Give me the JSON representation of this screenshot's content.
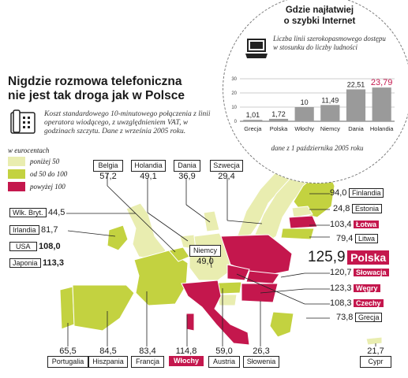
{
  "header": {
    "title_line1": "Nigdzie rozmowa telefoniczna",
    "title_line2": "nie jest tak droga jak w Polsce",
    "subtitle": "Koszt standardowego 10-minutowego połączenia z linii operatora wiodącego, z uwzględnieniem VAT, w godzinach szczytu. Dane z września 2005 roku."
  },
  "legend": {
    "title": "w eurocentach",
    "items": [
      {
        "label": "poniżej 50",
        "color": "#e9edb0"
      },
      {
        "label": "od 50 do 100",
        "color": "#c3d240"
      },
      {
        "label": "powyżej 100",
        "color": "#c4174d"
      }
    ]
  },
  "countries": [
    {
      "name": "Wlk. Bryt.",
      "value": "44,5"
    },
    {
      "name": "Irlandia",
      "value": "81,7"
    },
    {
      "name": "USA",
      "value": "108,0"
    },
    {
      "name": "Japonia",
      "value": "113,3"
    },
    {
      "name": "Belgia",
      "value": "57,2"
    },
    {
      "name": "Holandia",
      "value": "49,1"
    },
    {
      "name": "Dania",
      "value": "36,9"
    },
    {
      "name": "Szwecja",
      "value": "29,4"
    },
    {
      "name": "Niemcy",
      "value": "49,0"
    },
    {
      "name": "Finlandia",
      "value": "94,0"
    },
    {
      "name": "Estonia",
      "value": "24,8"
    },
    {
      "name": "Łotwa",
      "value": "103,4"
    },
    {
      "name": "Litwa",
      "value": "79,4"
    },
    {
      "name": "Polska",
      "value": "125,9"
    },
    {
      "name": "Słowacja",
      "value": "120,7"
    },
    {
      "name": "Węgry",
      "value": "123,3"
    },
    {
      "name": "Czechy",
      "value": "108,3"
    },
    {
      "name": "Grecja",
      "value": "73,8"
    },
    {
      "name": "Portugalia",
      "value": "65,5"
    },
    {
      "name": "Hiszpania",
      "value": "84,5"
    },
    {
      "name": "Francja",
      "value": "83,4"
    },
    {
      "name": "Włochy",
      "value": "114,8"
    },
    {
      "name": "Austria",
      "value": "59,0"
    },
    {
      "name": "Słowenia",
      "value": "26,3"
    },
    {
      "name": "Cypr",
      "value": "21,7"
    }
  ],
  "inset": {
    "title_line1": "Gdzie najłatwiej",
    "title_line2": "o szybki Internet",
    "note": "Liczba linii szerokopasmowego dostępu w stosunku do liczby ludności",
    "footnote": "dane z 1 października 2005 roku"
  },
  "chart_data": [
    {
      "type": "bar",
      "title": "Gdzie najłatwiej o szybki Internet",
      "categories": [
        "Grecja",
        "Polska",
        "Włochy",
        "Niemcy",
        "Dania",
        "Holandia"
      ],
      "values": [
        1.01,
        1.72,
        10,
        11.49,
        22.51,
        23.79
      ],
      "value_labels": [
        "1,01",
        "1,72",
        "10",
        "11,49",
        "22,51",
        "23,79"
      ],
      "ylim": [
        0,
        30
      ],
      "y_ticks": [
        "0",
        "10",
        "20",
        "30"
      ],
      "grid": true,
      "colors": {
        "bar": "#9a9a9a",
        "highlight_label": "#c4174d"
      }
    },
    {
      "type": "table",
      "title": "Nigdzie rozmowa telefoniczna nie jest tak droga jak w Polsce",
      "unit": "w eurocentach",
      "categories": [
        "Wlk. Bryt.",
        "Irlandia",
        "USA",
        "Japonia",
        "Belgia",
        "Holandia",
        "Dania",
        "Szwecja",
        "Niemcy",
        "Finlandia",
        "Estonia",
        "Łotwa",
        "Litwa",
        "Polska",
        "Słowacja",
        "Węgry",
        "Czechy",
        "Grecja",
        "Portugalia",
        "Hiszpania",
        "Francja",
        "Włochy",
        "Austria",
        "Słowenia",
        "Cypr"
      ],
      "values": [
        44.5,
        81.7,
        108.0,
        113.3,
        57.2,
        49.1,
        36.9,
        29.4,
        49.0,
        94.0,
        24.8,
        103.4,
        79.4,
        125.9,
        120.7,
        123.3,
        108.3,
        73.8,
        65.5,
        84.5,
        83.4,
        114.8,
        59.0,
        26.3,
        21.7
      ]
    }
  ]
}
